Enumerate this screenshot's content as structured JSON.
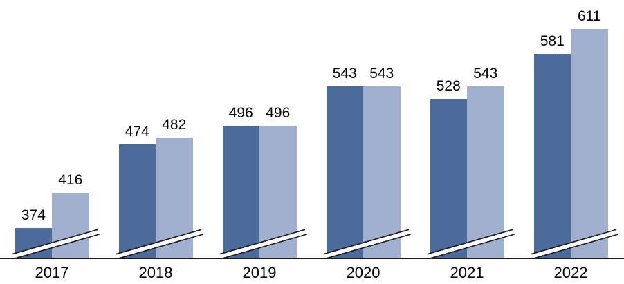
{
  "chart_data": {
    "type": "bar",
    "title": "",
    "xlabel": "",
    "ylabel": "",
    "categories": [
      "2017",
      "2018",
      "2019",
      "2020",
      "2021",
      "2022"
    ],
    "series": [
      {
        "key": "dark-blue",
        "name": "dark-blue-series",
        "color": "#4a6b9b",
        "values": [
          374,
          474,
          496,
          543,
          528,
          581
        ]
      },
      {
        "key": "light-blue",
        "name": "light-blue-series",
        "color": "#a0b0ce",
        "values": [
          416,
          482,
          496,
          543,
          543,
          611
        ]
      }
    ],
    "data_labels": true,
    "label_color": "#000000",
    "grid": false,
    "legend": "none",
    "y_axis_visible": false,
    "ylim": [
      338,
      620
    ],
    "axis_break": {
      "present": true,
      "band_fill": "#ffffff",
      "line_color": "#1a1a1a"
    },
    "axis_line_color": "#1a1a1a"
  }
}
